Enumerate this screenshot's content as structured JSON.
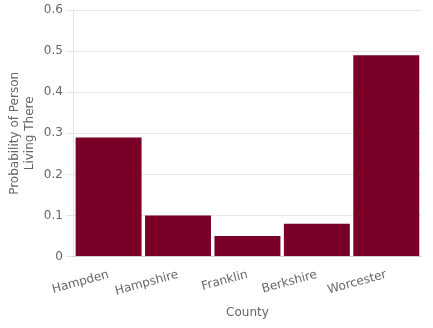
{
  "chart_data": {
    "type": "bar",
    "categories": [
      "Hampden",
      "Hampshire",
      "Franklin",
      "Berkshire",
      "Worcester"
    ],
    "values": [
      0.29,
      0.1,
      0.05,
      0.08,
      0.49
    ],
    "color": "#7B0028",
    "xlabel": "County",
    "ylabel": "Probability of Person\nLiving There",
    "ylim": [
      0,
      0.6
    ],
    "yticks": [
      0,
      0.1,
      0.2,
      0.3,
      0.4,
      0.5,
      0.6
    ],
    "grid": "y"
  }
}
